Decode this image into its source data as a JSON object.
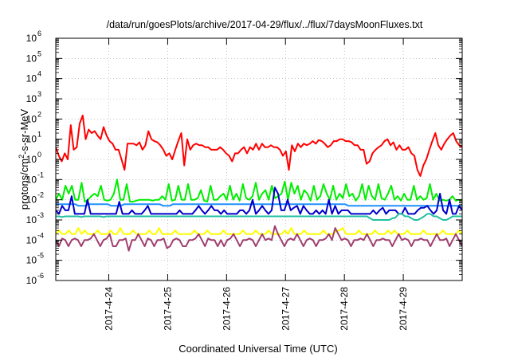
{
  "chart_data": {
    "type": "line",
    "title": "/data/run/goesPlots/archive/2017-04-29/flux/../flux/7daysMoonFluxes.txt",
    "xlabel": "Coordinated Universal Time (UTC)",
    "ylabel": {
      "prefix": "protons/cm",
      "superscript": "2",
      "suffix": "-s-sr-MeV"
    },
    "yscale": "log",
    "ylim_exponents": [
      -6,
      6
    ],
    "y_tick_base": "10",
    "y_tick_exponents": [
      "-6",
      "-5",
      "-4",
      "-3",
      "-2",
      "-1",
      "0",
      "1",
      "2",
      "3",
      "4",
      "5",
      "6"
    ],
    "xlim_days": [
      23.1,
      30.0
    ],
    "x_ticks": [
      {
        "label": "2017-4-24",
        "day": 24
      },
      {
        "label": "2017-4-25",
        "day": 25
      },
      {
        "label": "2017-4-26",
        "day": 26
      },
      {
        "label": "2017-4-27",
        "day": 27
      },
      {
        "label": "2017-4-28",
        "day": 28
      },
      {
        "label": "2017-4-29",
        "day": 29
      }
    ],
    "grid": true,
    "legend": "none",
    "x_start_day": 23.1,
    "x_end_day": 30.0,
    "series": [
      {
        "color": "#ff0000",
        "width": 2,
        "values": [
          4,
          1.5,
          0.8,
          2,
          1,
          50,
          3,
          4,
          60,
          150,
          10,
          30,
          20,
          25,
          15,
          10,
          40,
          15,
          8,
          6,
          3,
          3,
          1,
          0.3,
          6,
          6,
          6,
          5,
          7,
          3,
          5,
          25,
          10,
          8,
          7,
          5,
          3,
          1.5,
          2,
          1,
          3,
          8,
          20,
          0.5,
          10,
          3,
          5,
          6,
          5,
          5,
          4,
          4,
          3,
          3,
          3,
          4,
          3,
          2,
          1.5,
          0.8,
          2,
          2,
          3,
          4,
          2,
          4,
          3,
          6,
          3,
          6,
          4,
          4,
          5,
          4,
          4,
          3,
          1.5,
          2.5,
          0.3,
          5,
          2.5,
          6,
          4,
          6,
          5,
          6,
          8,
          6,
          9,
          8,
          6,
          4,
          5,
          8,
          8,
          10,
          10,
          8,
          8,
          7,
          5,
          5,
          3,
          3,
          0.6,
          0.8,
          2,
          3,
          4,
          5,
          8,
          10,
          5,
          7,
          3,
          5,
          3,
          3,
          4,
          2,
          1.5,
          0.3,
          0.15,
          0.5,
          1,
          3,
          8,
          20,
          5,
          3,
          6,
          10,
          15,
          20,
          8,
          5,
          4
        ]
      },
      {
        "color": "#00ee00",
        "width": 2,
        "values": [
          0.01,
          0.02,
          0.01,
          0.05,
          0.02,
          0.05,
          0.01,
          0.01,
          0.07,
          0.008,
          0.01,
          0.015,
          0.02,
          0.015,
          0.05,
          0.01,
          0.009,
          0.01,
          0.02,
          0.1,
          0.01,
          0.01,
          0.06,
          0.008,
          0.008,
          0.009,
          0.01,
          0.01,
          0.01,
          0.01,
          0.009,
          0.01,
          0.01,
          0.015,
          0.01,
          0.06,
          0.009,
          0.01,
          0.05,
          0.01,
          0.01,
          0.06,
          0.01,
          0.01,
          0.012,
          0.03,
          0.009,
          0.008,
          0.05,
          0.01,
          0.01,
          0.015,
          0.02,
          0.01,
          0.05,
          0.01,
          0.02,
          0.009,
          0.06,
          0.012,
          0.01,
          0.015,
          0.07,
          0.01,
          0.02,
          0.03,
          0.01,
          0.05,
          0.012,
          0.015,
          0.02,
          0.08,
          0.01,
          0.07,
          0.02,
          0.05,
          0.01,
          0.03,
          0.02,
          0.009,
          0.05,
          0.01,
          0.015,
          0.06,
          0.02,
          0.01,
          0.05,
          0.01,
          0.02,
          0.012,
          0.06,
          0.015,
          0.02,
          0.009,
          0.015,
          0.06,
          0.01,
          0.05,
          0.015,
          0.01,
          0.06,
          0.012,
          0.01,
          0.02,
          0.05,
          0.01,
          0.015,
          0.009,
          0.02,
          0.01,
          0.01,
          0.05,
          0.01,
          0.015,
          0.01,
          0.012,
          0.06,
          0.01,
          0.02,
          0.009,
          0.01,
          0.009,
          0.01,
          0.015,
          0.009,
          0.01,
          0.01
        ]
      },
      {
        "color": "#1e90ff",
        "width": 2,
        "values": [
          0.006,
          0.006,
          0.006,
          0.006,
          0.006,
          0.006,
          0.006,
          0.005,
          0.005,
          0.005,
          0.006,
          0.006,
          0.006,
          0.006,
          0.006,
          0.006,
          0.006,
          0.005,
          0.005,
          0.005,
          0.005,
          0.006,
          0.006,
          0.006,
          0.006,
          0.006,
          0.006,
          0.006,
          0.006,
          0.006,
          0.006,
          0.006,
          0.006,
          0.005,
          0.005,
          0.005,
          0.006,
          0.006,
          0.006,
          0.006,
          0.006,
          0.006,
          0.006,
          0.006,
          0.006,
          0.006,
          0.006,
          0.006,
          0.006,
          0.006,
          0.006,
          0.006,
          0.006,
          0.006,
          0.006,
          0.006,
          0.006,
          0.006,
          0.006,
          0.006,
          0.006,
          0.006,
          0.006,
          0.006,
          0.006,
          0.006,
          0.006,
          0.006,
          0.006,
          0.006,
          0.006,
          0.006,
          0.006,
          0.006,
          0.006,
          0.006,
          0.006,
          0.006,
          0.006,
          0.006,
          0.006,
          0.006,
          0.006,
          0.006,
          0.006,
          0.006,
          0.006,
          0.006,
          0.006,
          0.006,
          0.005,
          0.005,
          0.005,
          0.005,
          0.005,
          0.005,
          0.005,
          0.005,
          0.005,
          0.005,
          0.005,
          0.005,
          0.005,
          0.005,
          0.005,
          0.005,
          0.005,
          0.005,
          0.005,
          0.005,
          0.005,
          0.005,
          0.005,
          0.005,
          0.005,
          0.005,
          0.005,
          0.005,
          0.005,
          0.005,
          0.005,
          0.005,
          0.005,
          0.005,
          0.005,
          0.005
        ]
      },
      {
        "color": "#0000cc",
        "width": 2,
        "values": [
          0.003,
          0.002,
          0.005,
          0.003,
          0.003,
          0.015,
          0.002,
          0.002,
          0.002,
          0.002,
          0.01,
          0.002,
          0.002,
          0.002,
          0.002,
          0.002,
          0.002,
          0.002,
          0.002,
          0.002,
          0.008,
          0.002,
          0.002,
          0.002,
          0.003,
          0.002,
          0.002,
          0.002,
          0.003,
          0.005,
          0.002,
          0.002,
          0.002,
          0.002,
          0.002,
          0.002,
          0.002,
          0.002,
          0.002,
          0.003,
          0.002,
          0.002,
          0.002,
          0.002,
          0.003,
          0.005,
          0.003,
          0.002,
          0.003,
          0.005,
          0.003,
          0.003,
          0.002,
          0.003,
          0.002,
          0.002,
          0.002,
          0.002,
          0.003,
          0.003,
          0.002,
          0.003,
          0.01,
          0.002,
          0.003,
          0.005,
          0.003,
          0.002,
          0.003,
          0.04,
          0.02,
          0.003,
          0.003,
          0.01,
          0.003,
          0.004,
          0.005,
          0.002,
          0.005,
          0.003,
          0.002,
          0.002,
          0.003,
          0.002,
          0.003,
          0.002,
          0.01,
          0.002,
          0.005,
          0.002,
          0.003,
          0.003,
          0.003,
          0.002,
          0.002,
          0.002,
          0.002,
          0.002,
          0.002,
          0.002,
          0.003,
          0.002,
          0.003,
          0.004,
          0.002,
          0.003,
          0.003,
          0.003,
          0.002,
          0.002,
          0.004,
          0.002,
          0.002,
          0.002,
          0.003,
          0.004,
          0.004,
          0.005,
          0.003,
          0.002,
          0.003,
          0.02,
          0.003,
          0.002,
          0.01,
          0.002,
          0.002,
          0.005,
          0.003
        ]
      },
      {
        "color": "#20c0a0",
        "width": 2,
        "values": [
          0.0015,
          0.0015,
          0.0014,
          0.0015,
          0.0015,
          0.0015,
          0.0015,
          0.0015,
          0.0014,
          0.0015,
          0.0015,
          0.0015,
          0.0015,
          0.0015,
          0.0015,
          0.0014,
          0.0015,
          0.0015,
          0.0015,
          0.0015,
          0.0015,
          0.0015,
          0.0015,
          0.0015,
          0.0015,
          0.0015,
          0.0015,
          0.0015,
          0.0015,
          0.0015,
          0.0015,
          0.0015,
          0.0015,
          0.0015,
          0.0015,
          0.0015,
          0.0015,
          0.0015,
          0.0015,
          0.0015,
          0.0015,
          0.0015,
          0.0015,
          0.0015,
          0.0015,
          0.0015,
          0.0015,
          0.0015,
          0.0015,
          0.0015,
          0.0015,
          0.0015,
          0.0015,
          0.0015,
          0.0015,
          0.0015,
          0.0015,
          0.0015,
          0.0015,
          0.0015,
          0.0015,
          0.0015,
          0.0015,
          0.0015,
          0.0015,
          0.0015,
          0.0015,
          0.0015,
          0.0015,
          0.0015,
          0.0015,
          0.0015,
          0.0015,
          0.0015,
          0.0015,
          0.0015,
          0.0015,
          0.0015,
          0.0015,
          0.0015,
          0.0015,
          0.0015,
          0.0015,
          0.0015,
          0.0015,
          0.0015,
          0.0015,
          0.0015,
          0.0015,
          0.0015,
          0.0015,
          0.0015,
          0.0015,
          0.0015,
          0.0015,
          0.0015,
          0.0015,
          0.0015,
          0.0015,
          0.0012,
          0.001,
          0.001,
          0.001,
          0.001,
          0.001,
          0.001,
          0.0012,
          0.0013,
          0.002,
          0.002,
          0.0015,
          0.0015,
          0.0012,
          0.001,
          0.001,
          0.0012,
          0.0015,
          0.002,
          0.002,
          0.0015,
          0.0015,
          0.0012,
          0.001,
          0.001,
          0.0012,
          0.0015,
          0.0015,
          0.0015,
          0.0015
        ]
      },
      {
        "color": "#ffff00",
        "width": 2,
        "values": [
          0.0002,
          0.0003,
          0.0002,
          0.0002,
          0.0003,
          0.0002,
          0.0002,
          0.0004,
          0.0002,
          0.0003,
          0.0002,
          0.0002,
          0.0002,
          0.0003,
          0.0002,
          0.0002,
          0.0002,
          0.0003,
          0.0002,
          0.0002,
          0.0004,
          0.0002,
          0.0002,
          0.0002,
          0.0003,
          0.0002,
          0.0002,
          0.0002,
          0.0002,
          0.0003,
          0.0002,
          0.0002,
          0.0004,
          0.0002,
          0.0002,
          0.0002,
          0.0002,
          0.0003,
          0.0002,
          0.0002,
          0.0002,
          0.0002,
          0.0002,
          0.0003,
          0.0002,
          0.0002,
          0.0002,
          0.0003,
          0.0002,
          0.0002,
          0.0002,
          0.0002,
          0.0003,
          0.0002,
          0.0002,
          0.0002,
          0.0002,
          0.0002,
          0.0003,
          0.0002,
          0.0002,
          0.0002,
          0.0003,
          0.0002,
          0.0002,
          0.0002,
          0.0003,
          0.0002,
          0.0002,
          0.0002,
          0.0002,
          0.0003,
          0.0002,
          0.0004,
          0.0002,
          0.0002,
          0.0002,
          0.0003,
          0.0002,
          0.0002,
          0.0002,
          0.0002,
          0.0002,
          0.0003,
          0.0002,
          0.0002,
          0.0002,
          0.0003,
          0.0003,
          0.0004,
          0.0002,
          0.0002,
          0.0002,
          0.0002,
          0.0003,
          0.0002,
          0.0002,
          0.0002,
          0.0002,
          0.0003,
          0.0002,
          0.0002,
          0.0002,
          0.0003,
          0.0002,
          0.0003,
          0.0002,
          0.0002,
          0.0002,
          0.0003,
          0.0002,
          0.0002,
          0.0002,
          0.0002,
          0.0003,
          0.0002,
          0.0002,
          0.0002,
          0.0002,
          0.0002,
          0.0003,
          0.0002,
          0.0002,
          0.0002,
          0.0002,
          0.0003,
          0.0002
        ]
      },
      {
        "color": "#a04070",
        "width": 2,
        "values": [
          0.0001,
          5e-05,
          0.00012,
          0.0001,
          5e-05,
          0.0001,
          0.00012,
          0.0001,
          5e-05,
          0.0001,
          0.0001,
          0.00012,
          0.0002,
          0.0001,
          5e-05,
          0.0001,
          0.00012,
          0.0002,
          5e-05,
          5e-05,
          0.0001,
          0.0001,
          0.00012,
          3e-05,
          0.0001,
          0.0001,
          0.0002,
          0.0001,
          5e-05,
          0.00012,
          0.0001,
          5e-05,
          0.0001,
          0.0001,
          0.00012,
          4e-05,
          5e-05,
          0.0001,
          0.00012,
          0.0001,
          5e-05,
          5e-05,
          0.0001,
          0.0001,
          0.00012,
          0.0002,
          0.0001,
          5e-05,
          0.00012,
          0.0001,
          0.0001,
          5e-05,
          0.0001,
          5e-05,
          0.0001,
          0.00012,
          0.0002,
          0.0001,
          5e-05,
          0.0001,
          0.0001,
          0.00012,
          0.0001,
          5e-05,
          0.0001,
          0.0002,
          0.0001,
          0.00012,
          0.0001,
          0.0005,
          0.0002,
          0.0001,
          5e-05,
          0.0001,
          0.00012,
          0.0001,
          0.0002,
          0.0001,
          5e-05,
          0.0001,
          0.00012,
          0.0001,
          5e-05,
          0.0001,
          0.0001,
          0.00012,
          0.0002,
          0.0001,
          0.0004,
          0.0002,
          0.0001,
          0.00012,
          0.0001,
          5e-05,
          0.0001,
          0.0001,
          0.00012,
          0.0001,
          0.0002,
          0.0001,
          5e-05,
          0.0001,
          0.0001,
          0.00012,
          0.0001,
          0.0001,
          5e-05,
          0.0001,
          0.0002,
          0.0001,
          0.00012,
          0.0001,
          5e-05,
          0.0001,
          0.0001,
          0.00012,
          0.0001,
          0.0001,
          5e-05,
          0.0001,
          0.0002,
          0.0001,
          0.0001,
          0.00012,
          5e-05,
          0.0001,
          0.0002,
          0.0001,
          5e-05
        ]
      }
    ]
  }
}
